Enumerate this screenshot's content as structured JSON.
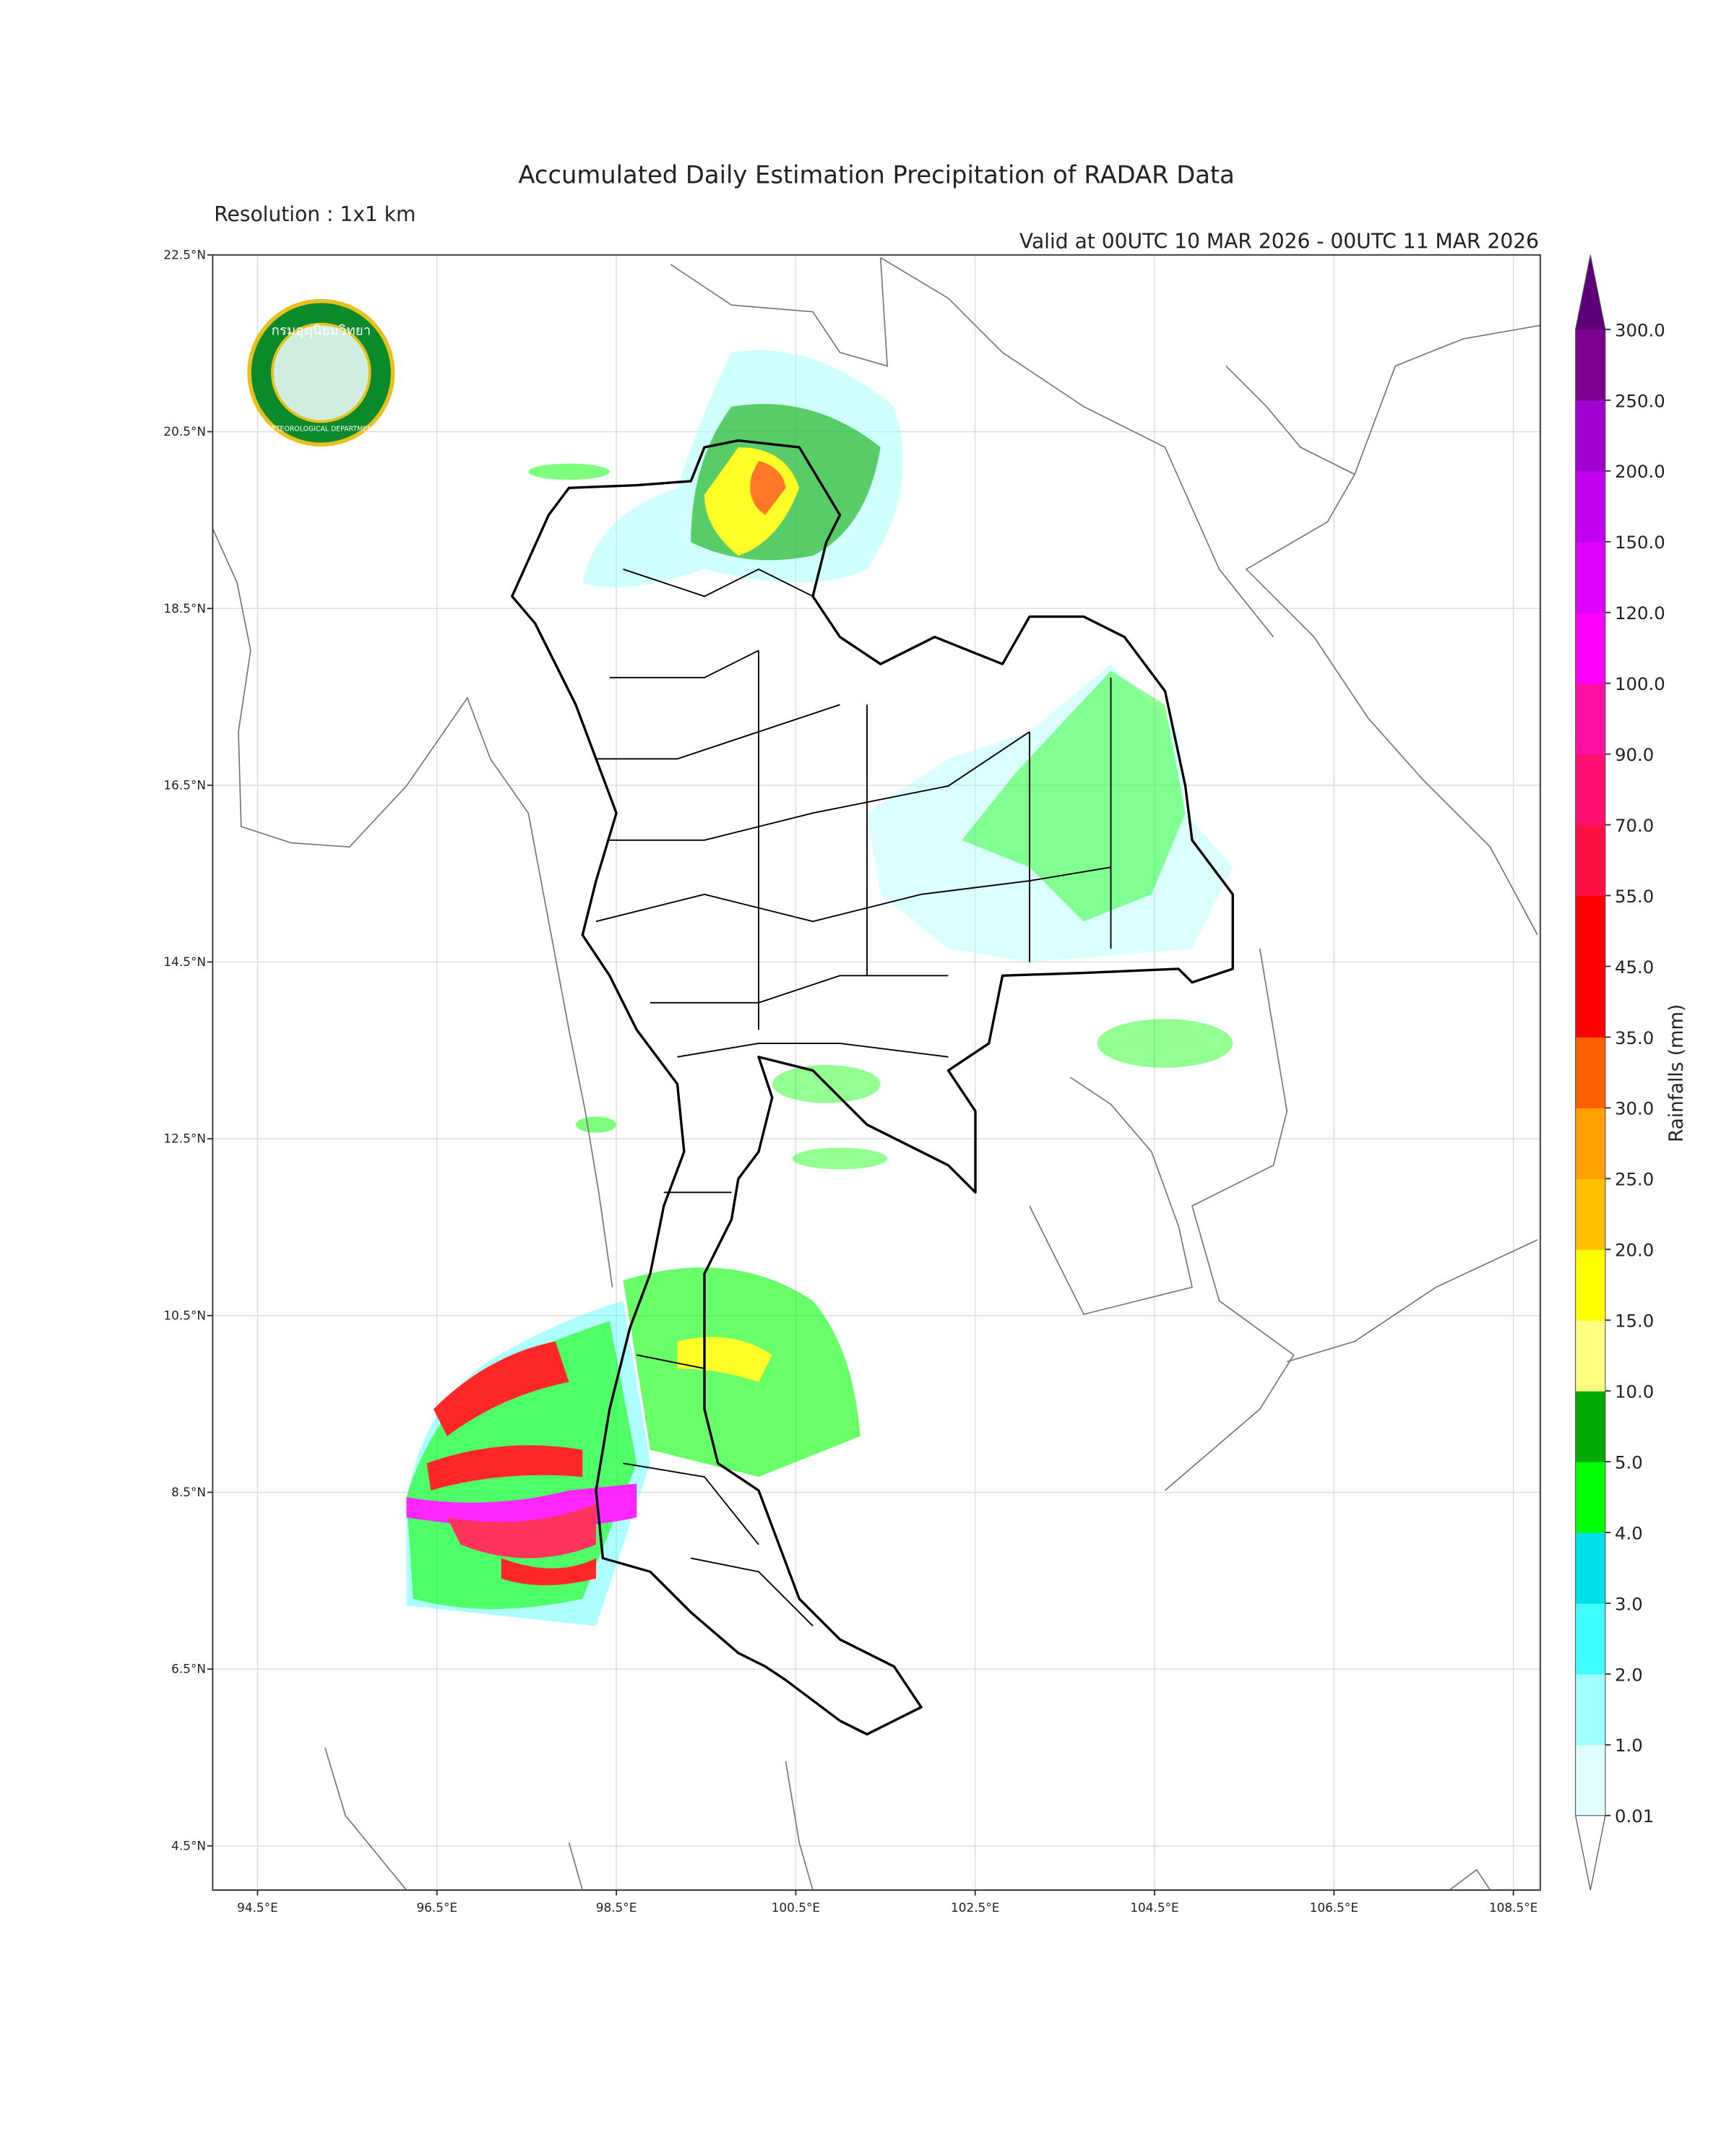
{
  "title": "Accumulated Daily Estimation Precipitation of RADAR Data",
  "resolution": "Resolution : 1x1 km",
  "valid": "Valid at 00UTC 10 MAR 2026 - 00UTC 11 MAR 2026",
  "logo": {
    "thai": "กรมอุตุนิยมวิทยา",
    "english": "METEOROLOGICAL DEPARTMENT"
  },
  "map": {
    "xlim": [
      94.0,
      108.8
    ],
    "ylim": [
      4.0,
      22.5
    ],
    "grid": true,
    "xticks": [
      {
        "value": 94.5,
        "label": "94.5°E"
      },
      {
        "value": 96.5,
        "label": "96.5°E"
      },
      {
        "value": 98.5,
        "label": "98.5°E"
      },
      {
        "value": 100.5,
        "label": "100.5°E"
      },
      {
        "value": 102.5,
        "label": "102.5°E"
      },
      {
        "value": 104.5,
        "label": "104.5°E"
      },
      {
        "value": 106.5,
        "label": "106.5°E"
      },
      {
        "value": 108.5,
        "label": "108.5°E"
      }
    ],
    "yticks": [
      {
        "value": 4.5,
        "label": "4.5°N"
      },
      {
        "value": 6.5,
        "label": "6.5°N"
      },
      {
        "value": 8.5,
        "label": "8.5°N"
      },
      {
        "value": 10.5,
        "label": "10.5°N"
      },
      {
        "value": 12.5,
        "label": "12.5°N"
      },
      {
        "value": 14.5,
        "label": "14.5°N"
      },
      {
        "value": 16.5,
        "label": "16.5°N"
      },
      {
        "value": 18.5,
        "label": "18.5°N"
      },
      {
        "value": 20.5,
        "label": "20.5°N"
      },
      {
        "value": 22.5,
        "label": "22.5°N"
      }
    ]
  },
  "colorbar": {
    "label": "Rainfalls (mm)",
    "levels": [
      0.01,
      {
        "value": 1,
        "label": "1.0"
      },
      {
        "value": 2,
        "label": "2.0"
      },
      {
        "value": 3,
        "label": "3.0"
      },
      {
        "value": 4,
        "label": "4.0"
      },
      {
        "value": 5,
        "label": "5.0"
      },
      {
        "value": 10,
        "label": "10.0"
      },
      {
        "value": 15,
        "label": "15.0"
      },
      {
        "value": 20,
        "label": "20.0"
      },
      {
        "value": 25,
        "label": "25.0"
      },
      {
        "value": 30,
        "label": "30.0"
      },
      {
        "value": 35,
        "label": "35.0"
      },
      {
        "value": 45,
        "label": "45.0"
      },
      {
        "value": 55,
        "label": "55.0"
      },
      {
        "value": 70,
        "label": "70.0"
      },
      {
        "value": 90,
        "label": "90.0"
      },
      {
        "value": 100,
        "label": "100.0"
      },
      {
        "value": 120,
        "label": "120.0"
      },
      {
        "value": 150,
        "label": "150.0"
      },
      {
        "value": 200,
        "label": "200.0"
      },
      {
        "value": 250,
        "label": "250.0"
      },
      {
        "value": 300,
        "label": "300.0"
      }
    ],
    "colors": [
      "#e0ffff",
      "#a0ffff",
      "#40ffff",
      "#00e0e8",
      "#00ff00",
      "#00aa00",
      "#ffff80",
      "#ffff00",
      "#ffc000",
      "#ffa000",
      "#ff6000",
      "#ff0000",
      "#ff0000",
      "#ff1040",
      "#ff1070",
      "#ff10a0",
      "#ff00ff",
      "#e000ff",
      "#c000f0",
      "#a000d0",
      "#7a0090"
    ],
    "over_color": "#5c007a",
    "under_color": "#ffffff"
  }
}
